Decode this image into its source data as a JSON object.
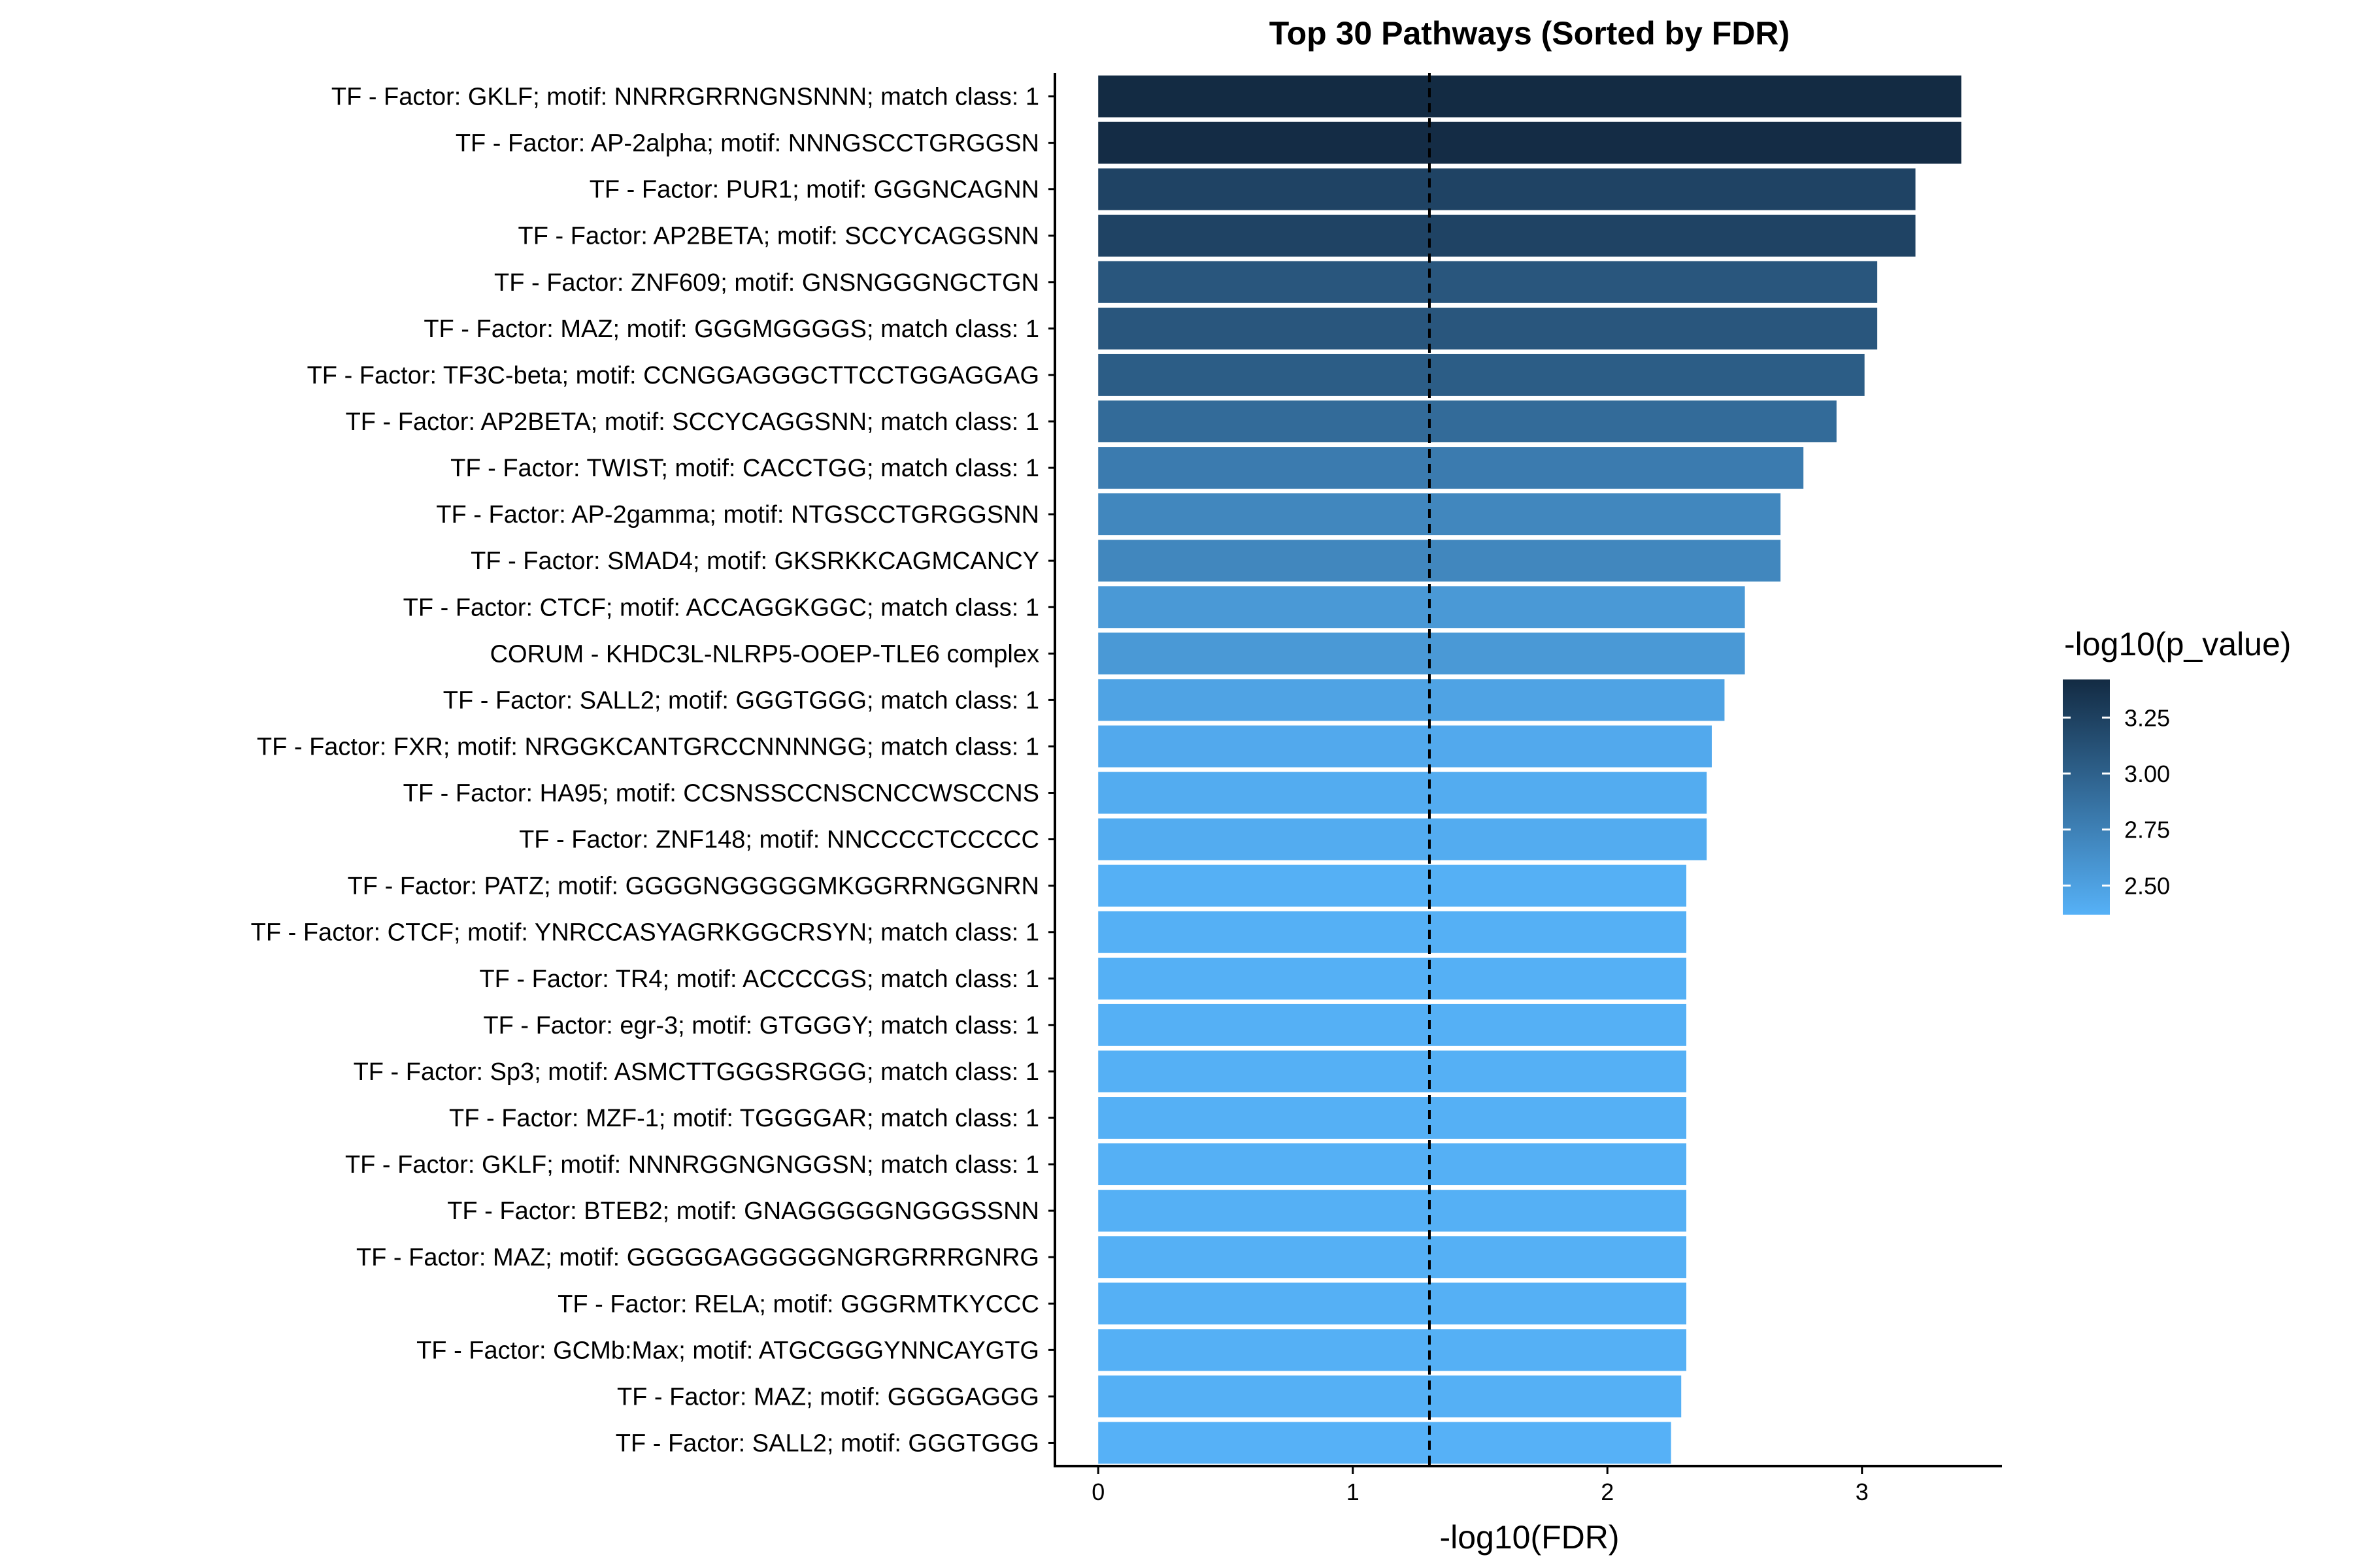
{
  "chart_data": {
    "type": "bar",
    "orientation": "horizontal",
    "title": "Top 30 Pathways (Sorted by FDR)",
    "xlabel": "-log10(FDR)",
    "ylabel": "",
    "xlim": [
      -0.17,
      3.55
    ],
    "xticks": [
      0,
      1,
      2,
      3
    ],
    "reference_line": 1.30103,
    "grid": false,
    "legend": {
      "title": "-log10(p_value)",
      "placement": "right",
      "range": [
        2.37,
        3.42
      ],
      "ticks": [
        2.5,
        2.75,
        3.0,
        3.25
      ],
      "tick_labels": [
        "2.50",
        "2.75",
        "3.00",
        "3.25"
      ],
      "color_low": "#56B1F7",
      "color_high": "#132B43"
    },
    "categories": [
      "TF - Factor: GKLF; motif: NNRRGRRNGNSNNN; match class: 1",
      "TF - Factor: AP-2alpha; motif: NNNGSCCTGRGGSN",
      "TF - Factor: PUR1; motif: GGGNCAGNN",
      "TF - Factor: AP2BETA; motif: SCCYCAGGSNN",
      "TF - Factor: ZNF609; motif: GNSNGGGNGCTGN",
      "TF - Factor: MAZ; motif: GGGMGGGGS; match class: 1",
      "TF - Factor: TF3C-beta; motif: CCNGGAGGGCTTCCTGGAGGAG",
      "TF - Factor: AP2BETA; motif: SCCYCAGGSNN; match class: 1",
      "TF - Factor: TWIST; motif: CACCTGG; match class: 1",
      "TF - Factor: AP-2gamma; motif: NTGSCCTGRGGSNN",
      "TF - Factor: SMAD4; motif: GKSRKKCAGMCANCY",
      "TF - Factor: CTCF; motif: ACCAGGKGGC; match class: 1",
      "CORUM - KHDC3L-NLRP5-OOEP-TLE6 complex",
      "TF - Factor: SALL2; motif: GGGTGGG; match class: 1",
      "TF - Factor: FXR; motif: NRGGKCANTGRCCNNNNGG; match class: 1",
      "TF - Factor: HA95; motif: CCSNSSCCNSCNCCWSCCNS",
      "TF - Factor: ZNF148; motif: NNCCCCTCCCCC",
      "TF - Factor: PATZ; motif: GGGGNGGGGGMKGGRRNGGNRN",
      "TF - Factor: CTCF; motif: YNRCCASYAGRKGGCRSYN; match class: 1",
      "TF - Factor: TR4; motif: ACCCCGS; match class: 1",
      "TF - Factor: egr-3; motif: GTGGGY; match class: 1",
      "TF - Factor: Sp3; motif: ASMCTTGGGSRGGG; match class: 1",
      "TF - Factor: MZF-1; motif: TGGGGAR; match class: 1",
      "TF - Factor: GKLF; motif: NNNRGGNGNGGSN; match class: 1",
      "TF - Factor: BTEB2; motif: GNAGGGGGNGGGSSNN",
      "TF - Factor: MAZ; motif: GGGGGAGGGGGNGRGRRRGNRG",
      "TF - Factor: RELA; motif: GGGRMTKYCCC",
      "TF - Factor: GCMb:Max; motif: ATGCGGGYNNCAYGTG",
      "TF - Factor: MAZ; motif: GGGGAGGG",
      "TF - Factor: SALL2; motif: GGGTGGG"
    ],
    "values": [
      3.39,
      3.39,
      3.21,
      3.21,
      3.06,
      3.06,
      3.01,
      2.9,
      2.77,
      2.68,
      2.68,
      2.54,
      2.54,
      2.46,
      2.41,
      2.39,
      2.39,
      2.31,
      2.31,
      2.31,
      2.31,
      2.31,
      2.31,
      2.31,
      2.31,
      2.31,
      2.31,
      2.31,
      2.29,
      2.25
    ],
    "color_values": [
      3.42,
      3.41,
      3.23,
      3.23,
      3.08,
      3.08,
      3.03,
      2.92,
      2.79,
      2.7,
      2.7,
      2.56,
      2.56,
      2.48,
      2.43,
      2.41,
      2.41,
      2.38,
      2.38,
      2.38,
      2.38,
      2.38,
      2.38,
      2.38,
      2.38,
      2.38,
      2.38,
      2.38,
      2.38,
      2.37
    ]
  }
}
